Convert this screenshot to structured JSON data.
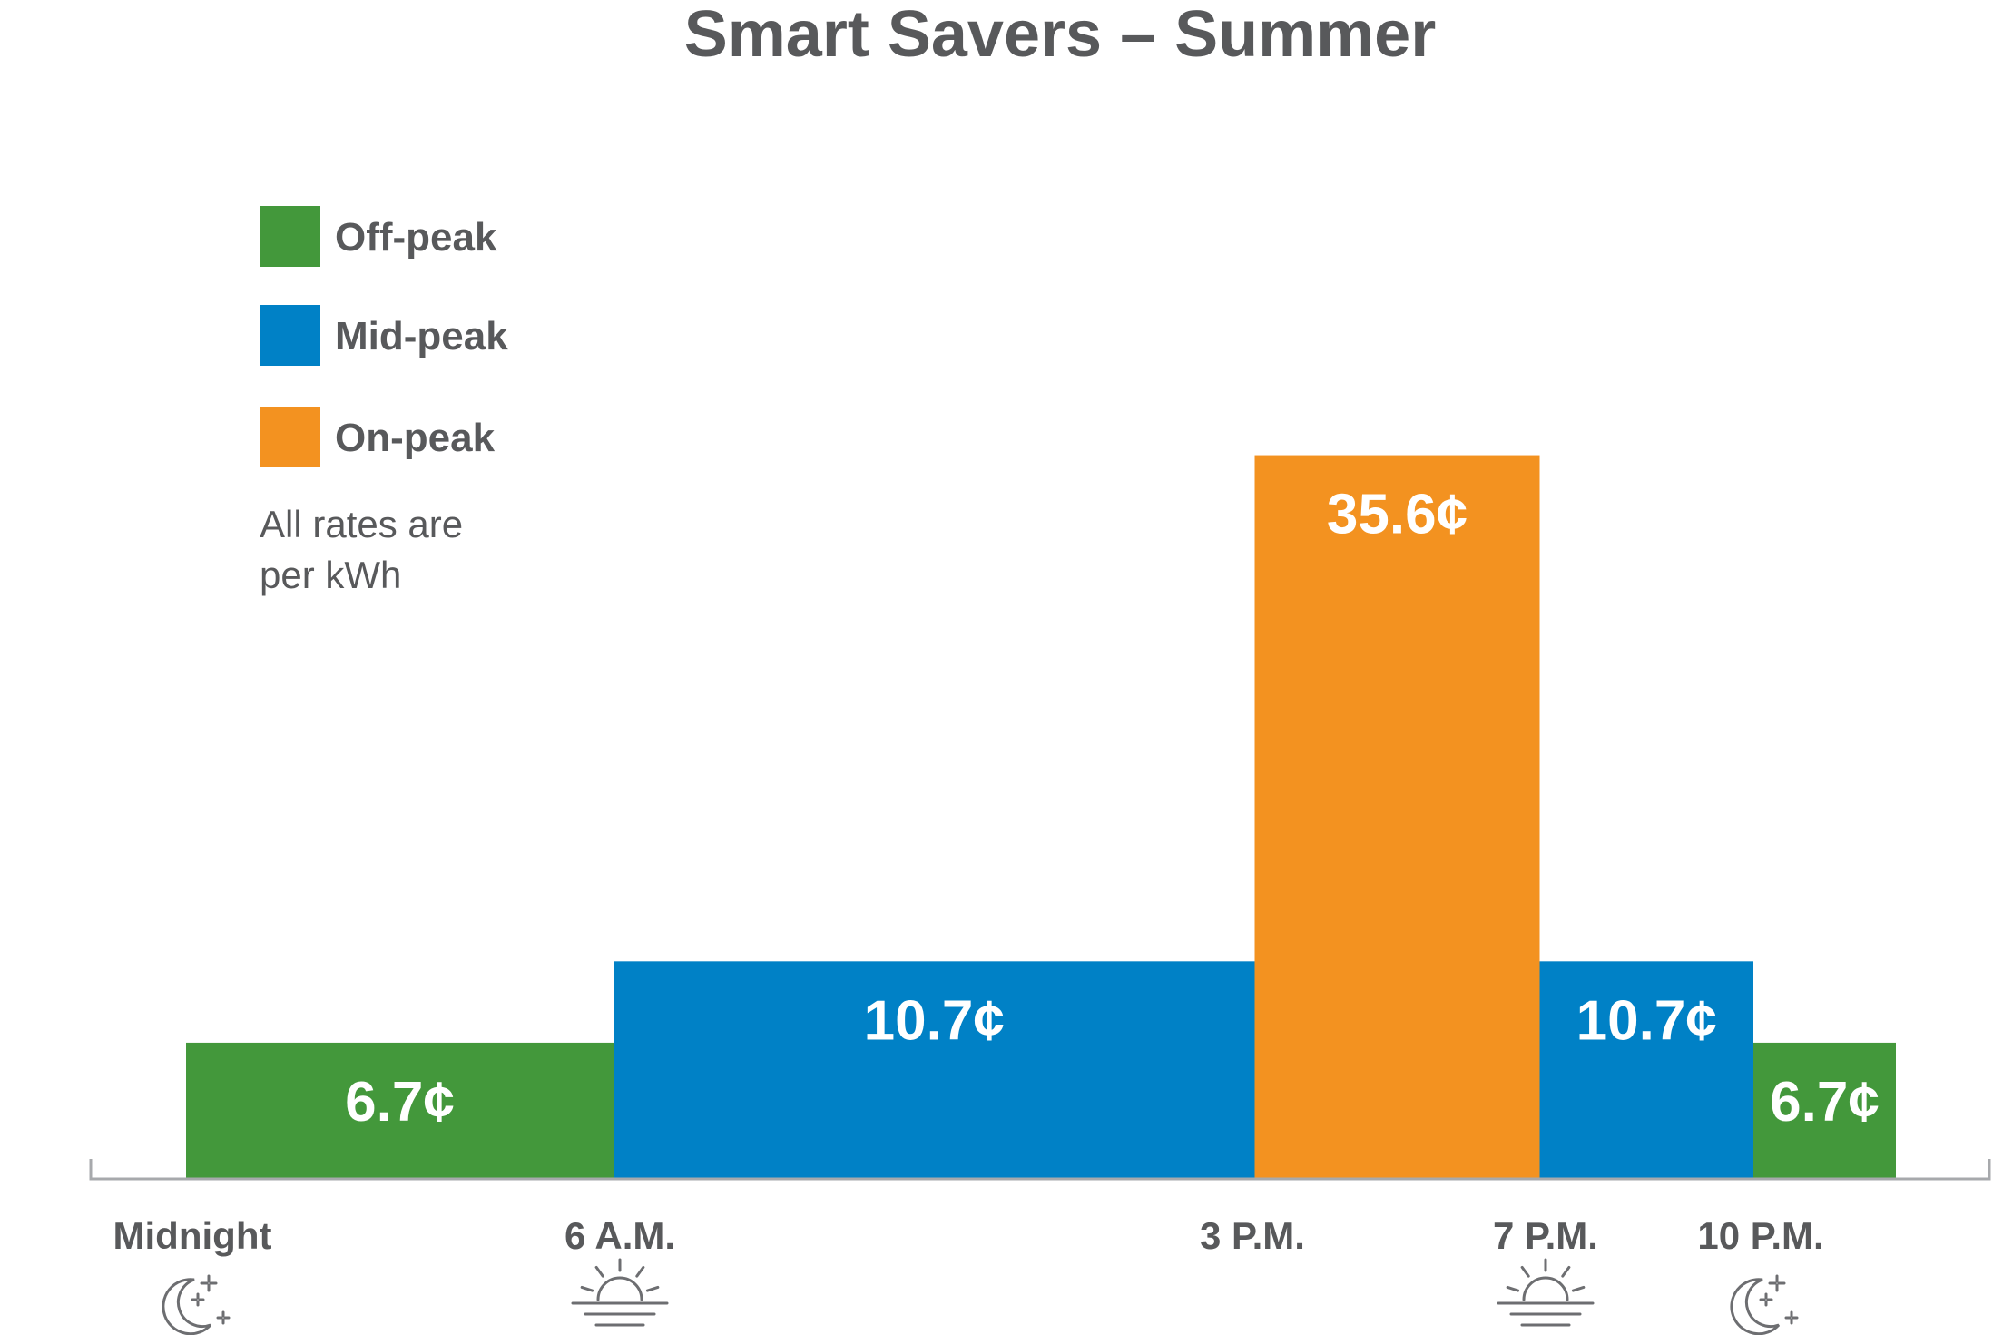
{
  "chart_data": {
    "type": "bar",
    "title": "Smart Savers – Summer",
    "note": [
      "All rates are",
      "per kWh"
    ],
    "legend": [
      {
        "name": "Off-peak",
        "color": "#43983b"
      },
      {
        "name": "Mid-peak",
        "color": "#0081c6"
      },
      {
        "name": "On-peak",
        "color": "#f39220"
      }
    ],
    "x_range": [
      0,
      24
    ],
    "ylim": [
      0,
      40
    ],
    "segments": [
      {
        "start": 0,
        "end": 6,
        "value": 6.7,
        "label": "6.7¢",
        "tier": "Off-peak"
      },
      {
        "start": 6,
        "end": 15,
        "value": 10.7,
        "label": "10.7¢",
        "tier": "Mid-peak"
      },
      {
        "start": 15,
        "end": 19,
        "value": 35.6,
        "label": "35.6¢",
        "tier": "On-peak"
      },
      {
        "start": 19,
        "end": 22,
        "value": 10.7,
        "label": "10.7¢",
        "tier": "Mid-peak"
      },
      {
        "start": 22,
        "end": 24,
        "value": 6.7,
        "label": "6.7¢",
        "tier": "Off-peak"
      }
    ],
    "ticks": [
      {
        "hour": 0,
        "label": "Midnight",
        "icon": "moon-stars-icon"
      },
      {
        "hour": 6,
        "label": "6 A.M.",
        "icon": "sunrise-icon"
      },
      {
        "hour": 15,
        "label": "3 P.M.",
        "icon": ""
      },
      {
        "hour": 19,
        "label": "7 P.M.",
        "icon": "sunset-icon"
      },
      {
        "hour": 22,
        "label": "10 P.M.",
        "icon": "moon-stars-icon"
      }
    ],
    "grid": false,
    "legend_position": "top-left",
    "colors": {
      "text": "#58595b",
      "axis": "#a7a9ac",
      "icon": "#6d6e71"
    }
  }
}
